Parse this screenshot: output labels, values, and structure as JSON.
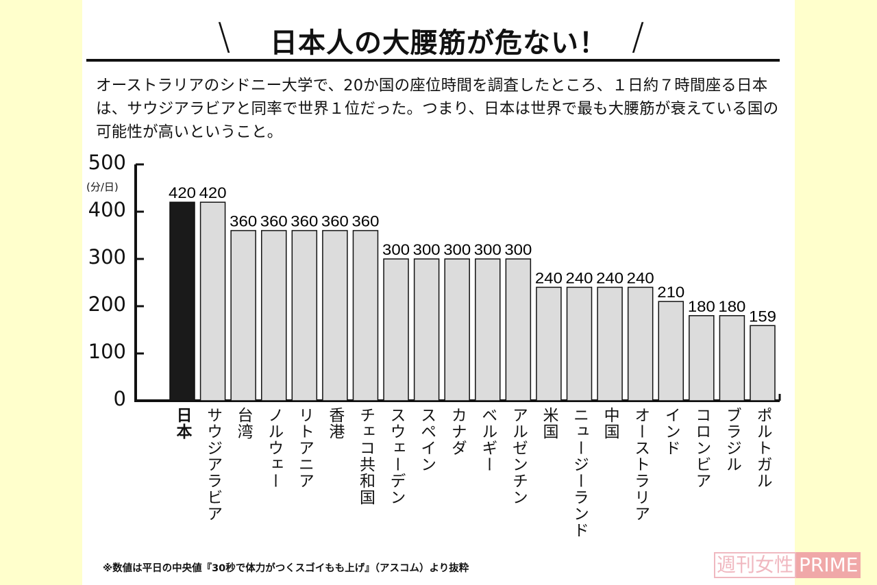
{
  "title": "日本人の大腰筋が危ない！",
  "lead": "オーストラリアのシドニー大学で、20か国の座位時間を調査したところ、１日約７時間座る日本は、サウジアラビアと同率で世界１位だった。つまり、日本は世界で最も大腰筋が衰えている国の可能性が高いということ。",
  "note": "※数値は平日の中央値『30秒で体力がつくスゴイもも上げ』（アスコム）より抜粋",
  "watermark": {
    "a": "週刊女性",
    "b": "PRIME"
  },
  "colors": {
    "highlight": "#1a1a1a",
    "bar": "#dcdcdc",
    "background": "#ffffcc",
    "watermark": "#f0a8a8"
  },
  "chart_data": {
    "type": "bar",
    "ylabel": "(分/日)",
    "ylim": [
      0,
      500
    ],
    "yticks": [
      0,
      100,
      200,
      300,
      400,
      500
    ],
    "grid": false,
    "highlight_index": 0,
    "categories": [
      "日本",
      "サウジアラビア",
      "台湾",
      "ノルウェー",
      "リトアニア",
      "香港",
      "チェコ共和国",
      "スウェーデン",
      "スペイン",
      "カナダ",
      "ベルギー",
      "アルゼンチン",
      "米国",
      "ニュージーランド",
      "中国",
      "オーストラリア",
      "インド",
      "コロンビア",
      "ブラジル",
      "ポルトガル"
    ],
    "values": [
      420,
      420,
      360,
      360,
      360,
      360,
      360,
      300,
      300,
      300,
      300,
      300,
      240,
      240,
      240,
      240,
      210,
      180,
      180,
      159
    ]
  }
}
